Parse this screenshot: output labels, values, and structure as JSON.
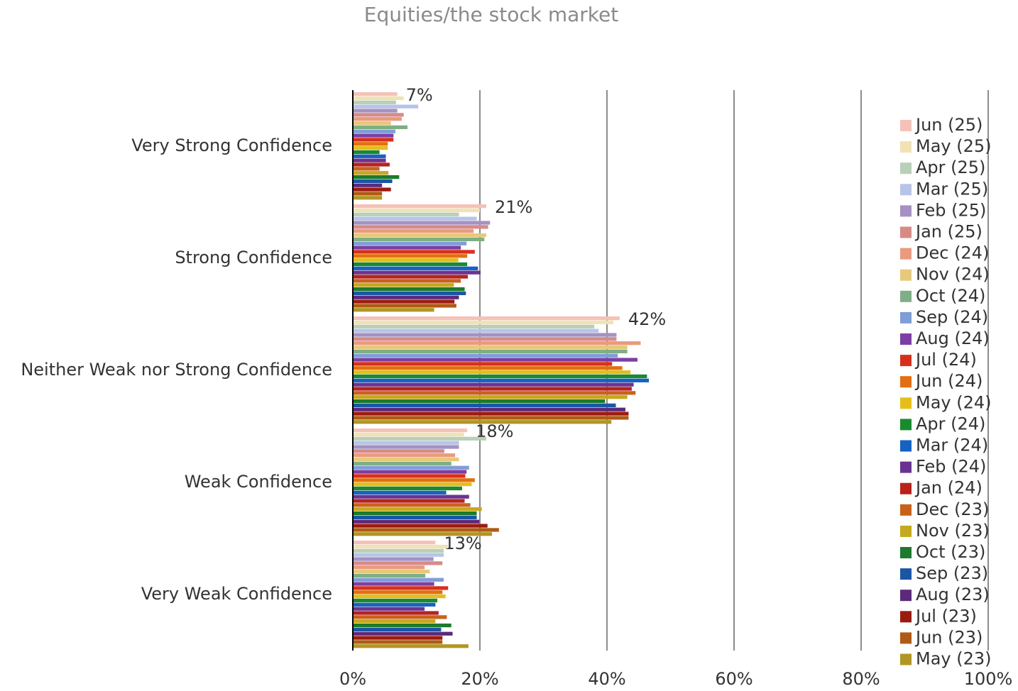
{
  "chart_data": {
    "type": "bar",
    "orientation": "horizontal",
    "title": "Equities/the stock market",
    "categories": [
      "Very Strong Confidence",
      "Strong Confidence",
      "Neither Weak nor Strong Confidence",
      "Weak Confidence",
      "Very Weak Confidence"
    ],
    "xlim": [
      0,
      100
    ],
    "xticks": [
      {
        "value": 0,
        "label": "0%"
      },
      {
        "value": 20,
        "label": "20%"
      },
      {
        "value": 40,
        "label": "40%"
      },
      {
        "value": 60,
        "label": "60%"
      },
      {
        "value": 80,
        "label": "80%"
      },
      {
        "value": 100,
        "label": "100%"
      }
    ],
    "grid": true,
    "legend": "right",
    "series": [
      {
        "name": "Jun (25)",
        "color": "#f4c2b8",
        "values": [
          7,
          21,
          42,
          18,
          13
        ],
        "value_labels": [
          "7%",
          "21%",
          "42%",
          "18%",
          "13%"
        ]
      },
      {
        "name": "May (25)",
        "color": "#f1e2b5",
        "values": [
          8,
          20,
          41,
          17.5,
          15
        ]
      },
      {
        "name": "Apr (25)",
        "color": "#b9cfb8",
        "values": [
          6.8,
          16.7,
          38,
          21,
          14.3
        ]
      },
      {
        "name": "Mar (25)",
        "color": "#b7c4e8",
        "values": [
          10.3,
          19.5,
          38.7,
          16.7,
          14.3
        ]
      },
      {
        "name": "Feb (25)",
        "color": "#a592c2",
        "values": [
          7,
          21.6,
          41.5,
          16.7,
          12.7
        ]
      },
      {
        "name": "Jan (25)",
        "color": "#d98a86",
        "values": [
          8,
          21.3,
          41.5,
          14.4,
          14.1
        ]
      },
      {
        "name": "Dec (24)",
        "color": "#e99b7e",
        "values": [
          7.7,
          19,
          45.3,
          16.1,
          11.3
        ]
      },
      {
        "name": "Nov (24)",
        "color": "#e6c97a",
        "values": [
          6,
          21,
          43.2,
          16.7,
          12.1
        ]
      },
      {
        "name": "Oct (24)",
        "color": "#7fae85",
        "values": [
          8.6,
          20.7,
          43.2,
          15.5,
          11.4
        ]
      },
      {
        "name": "Sep (24)",
        "color": "#7f9dd6",
        "values": [
          6.7,
          17.9,
          41.7,
          18.3,
          14.3
        ]
      },
      {
        "name": "Aug (24)",
        "color": "#7b3fa5",
        "values": [
          6.4,
          17,
          44.8,
          17.9,
          12.8
        ]
      },
      {
        "name": "Jul (24)",
        "color": "#d6301c",
        "values": [
          6.4,
          19.2,
          40.8,
          17.7,
          15
        ]
      },
      {
        "name": "Jun (24)",
        "color": "#e36f12",
        "values": [
          5.5,
          18,
          42.4,
          19.2,
          14.1
        ]
      },
      {
        "name": "May (24)",
        "color": "#e5be1a",
        "values": [
          5.5,
          16.6,
          43.7,
          18.7,
          14.6
        ]
      },
      {
        "name": "Apr (24)",
        "color": "#1a8a2e",
        "values": [
          4.2,
          18,
          46.3,
          17.2,
          13.3
        ]
      },
      {
        "name": "Mar (24)",
        "color": "#1662c2",
        "values": [
          5.2,
          19.7,
          46.6,
          14.7,
          13
        ]
      },
      {
        "name": "Feb (24)",
        "color": "#6b3391",
        "values": [
          5.2,
          20.1,
          44.2,
          18.3,
          11.3
        ]
      },
      {
        "name": "Jan (24)",
        "color": "#b8221a",
        "values": [
          5.8,
          18.1,
          43.9,
          17.6,
          13.5
        ]
      },
      {
        "name": "Dec (23)",
        "color": "#c8621b",
        "values": [
          4.2,
          17,
          44.5,
          18.5,
          14.8
        ]
      },
      {
        "name": "Nov (23)",
        "color": "#c5a91e",
        "values": [
          5.6,
          15.9,
          43.2,
          20.3,
          13
        ]
      },
      {
        "name": "Oct (23)",
        "color": "#1b7a2e",
        "values": [
          7.3,
          17.6,
          39.7,
          19.5,
          15.5
        ]
      },
      {
        "name": "Sep (23)",
        "color": "#1a56a4",
        "values": [
          6.2,
          17.8,
          41.4,
          19.5,
          13.9
        ]
      },
      {
        "name": "Aug (23)",
        "color": "#5b2a7a",
        "values": [
          4.6,
          16.7,
          42.9,
          19.9,
          15.7
        ]
      },
      {
        "name": "Jul (23)",
        "color": "#9b1b10",
        "values": [
          6,
          16,
          43.4,
          21.2,
          14.1
        ]
      },
      {
        "name": "Jun (23)",
        "color": "#b05a17",
        "values": [
          4.6,
          16.3,
          43.4,
          23,
          14.1
        ]
      },
      {
        "name": "May (23)",
        "color": "#b19623",
        "values": [
          4.6,
          12.8,
          40.7,
          21.9,
          18.2
        ]
      }
    ]
  }
}
